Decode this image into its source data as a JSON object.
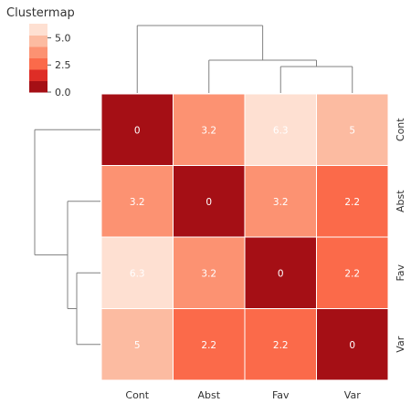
{
  "chart_data": {
    "type": "heatmap",
    "title": "Clustermap",
    "rows": [
      "Cont",
      "Abst",
      "Fav",
      "Var"
    ],
    "columns": [
      "Cont",
      "Abst",
      "Fav",
      "Var"
    ],
    "values": [
      [
        0,
        3.2,
        6.3,
        5
      ],
      [
        3.2,
        0,
        3.2,
        2.2
      ],
      [
        6.3,
        3.2,
        0,
        2.2
      ],
      [
        5,
        2.2,
        2.2,
        0
      ]
    ],
    "cell_labels": [
      [
        "0",
        "3.2",
        "6.3",
        "5"
      ],
      [
        "3.2",
        "0",
        "3.2",
        "2.2"
      ],
      [
        "6.3",
        "3.2",
        "0",
        "2.2"
      ],
      [
        "5",
        "2.2",
        "2.2",
        "0"
      ]
    ],
    "colorbar": {
      "range": [
        0,
        6.3
      ],
      "ticks": [
        0,
        2.5,
        5
      ],
      "tick_labels": [
        "0.0",
        "2.5",
        "5.0"
      ],
      "colors": [
        "#a50f15",
        "#de2d26",
        "#fb6a4a",
        "#fc9272",
        "#fcbba1",
        "#fee0d2"
      ]
    },
    "dendrograms": [
      "left",
      "top"
    ],
    "grid": false
  }
}
